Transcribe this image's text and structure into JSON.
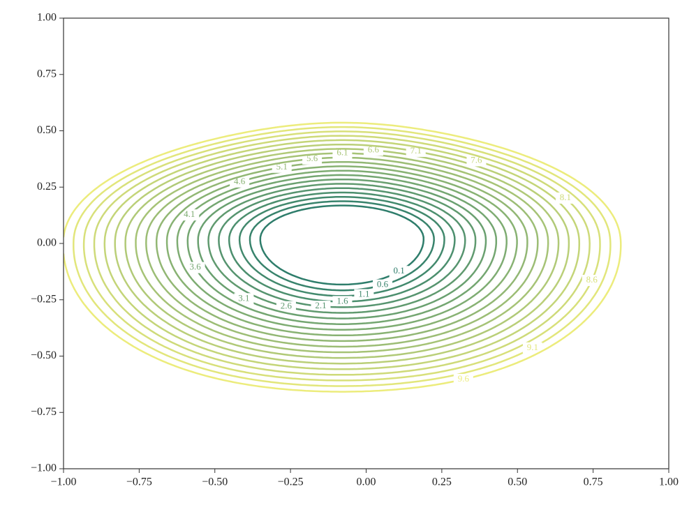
{
  "chart_data": {
    "type": "contour",
    "xlim": [
      -1,
      1
    ],
    "ylim": [
      -1,
      1
    ],
    "xticks": [
      {
        "value": -1,
        "label": "−1.00"
      },
      {
        "value": -0.75,
        "label": "−0.75"
      },
      {
        "value": -0.5,
        "label": "−0.50"
      },
      {
        "value": -0.25,
        "label": "−0.25"
      },
      {
        "value": 0,
        "label": "0.00"
      },
      {
        "value": 0.25,
        "label": "0.25"
      },
      {
        "value": 0.5,
        "label": "0.50"
      },
      {
        "value": 0.75,
        "label": "0.75"
      },
      {
        "value": 1,
        "label": "1.00"
      }
    ],
    "yticks": [
      {
        "value": -1,
        "label": "−1.00"
      },
      {
        "value": -0.75,
        "label": "−0.75"
      },
      {
        "value": -0.5,
        "label": "−0.50"
      },
      {
        "value": -0.25,
        "label": "−0.25"
      },
      {
        "value": 0,
        "label": "0.00"
      },
      {
        "value": 0.25,
        "label": "0.25"
      },
      {
        "value": 0.5,
        "label": "0.50"
      },
      {
        "value": 0.75,
        "label": "0.75"
      },
      {
        "value": 1,
        "label": "1.00"
      }
    ],
    "levels": [
      0.1,
      0.6,
      1.1,
      1.6,
      2.1,
      2.6,
      3.1,
      3.6,
      4.1,
      4.6,
      5.1,
      5.6,
      6.1,
      6.6,
      7.1,
      7.6,
      8.1,
      8.6,
      9.1,
      9.6
    ],
    "colormap": [
      "#2e7d6b",
      "#ecec7c"
    ]
  }
}
